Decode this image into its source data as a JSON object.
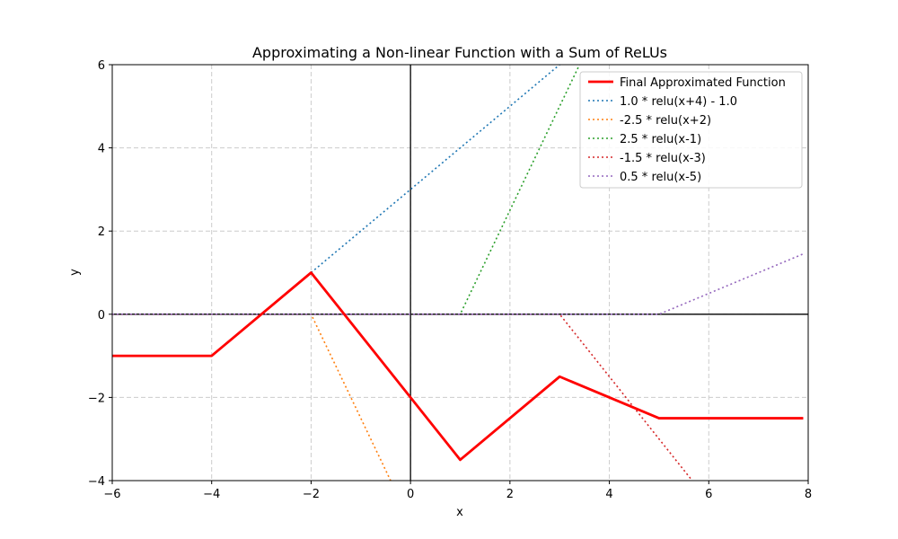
{
  "chart_data": {
    "type": "line",
    "title": "Approximating a Non-linear Function with a Sum of ReLUs",
    "xlabel": "x",
    "ylabel": "y",
    "xlim": [
      -6,
      8
    ],
    "ylim": [
      -4,
      6
    ],
    "xticks": [
      -6,
      -4,
      -2,
      0,
      2,
      4,
      6,
      8
    ],
    "yticks": [
      -4,
      -2,
      0,
      2,
      4,
      6
    ],
    "xtick_labels": [
      "−6",
      "−4",
      "−2",
      "0",
      "2",
      "4",
      "6",
      "8"
    ],
    "ytick_labels": [
      "−4",
      "−2",
      "0",
      "2",
      "4",
      "6"
    ],
    "grid": true,
    "legend_position": "top-right",
    "reference_lines": {
      "x0": true,
      "y0": true
    },
    "series": [
      {
        "name": "Final Approximated Function",
        "color": "#ff0000",
        "style": "solid",
        "x": [
          -6,
          -4,
          -2,
          1,
          3,
          5,
          7.9
        ],
        "y": [
          -1,
          -1,
          1,
          -3.5,
          -1.5,
          -2.5,
          -2.5
        ]
      },
      {
        "name": "1.0 * relu(x+4) - 1.0",
        "color": "#1f77b4",
        "style": "dotted",
        "x": [
          -6,
          -4,
          3
        ],
        "y": [
          -1,
          -1,
          6
        ]
      },
      {
        "name": "-2.5 * relu(x+2)",
        "color": "#ff7f0e",
        "style": "dotted",
        "x": [
          -6,
          -2,
          -0.4
        ],
        "y": [
          0,
          0,
          -4
        ]
      },
      {
        "name": "2.5 * relu(x-1)",
        "color": "#2ca02c",
        "style": "dotted",
        "x": [
          -6,
          1,
          3.4
        ],
        "y": [
          0,
          0,
          6
        ]
      },
      {
        "name": "-1.5 * relu(x-3)",
        "color": "#d62728",
        "style": "dotted",
        "x": [
          -6,
          3,
          5.6667
        ],
        "y": [
          0,
          0,
          -4
        ]
      },
      {
        "name": "0.5 * relu(x-5)",
        "color": "#9467bd",
        "style": "dotted",
        "x": [
          -6,
          5,
          7.9
        ],
        "y": [
          0,
          0,
          1.45
        ]
      }
    ]
  }
}
